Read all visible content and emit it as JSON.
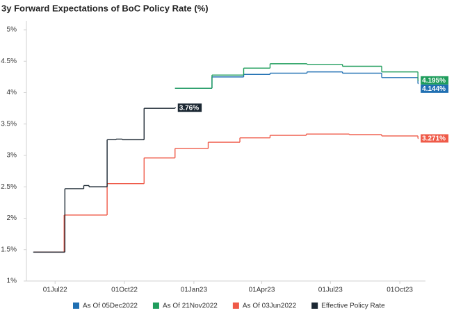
{
  "chart_data": {
    "type": "step-line",
    "title": "3y Forward Expectations of BoC Policy Rate (%)",
    "xlim": [
      "2022-05-24",
      "2023-11-04"
    ],
    "xticks": [
      {
        "value": "2022-07-01",
        "label": "01Jul22"
      },
      {
        "value": "2022-10-01",
        "label": "01Oct22"
      },
      {
        "value": "2023-01-01",
        "label": "01Jan23"
      },
      {
        "value": "2023-04-01",
        "label": "01Apr23"
      },
      {
        "value": "2023-07-01",
        "label": "01Jul23"
      },
      {
        "value": "2023-10-01",
        "label": "01Oct23"
      }
    ],
    "ylim": [
      1,
      5
    ],
    "yticks": [
      {
        "value": 1,
        "label": "1%"
      },
      {
        "value": 1.5,
        "label": "1.5%"
      },
      {
        "value": 2,
        "label": "2%"
      },
      {
        "value": 2.5,
        "label": "2.5%"
      },
      {
        "value": 3,
        "label": "3%"
      },
      {
        "value": 3.5,
        "label": "3.5%"
      },
      {
        "value": 4,
        "label": "4%"
      },
      {
        "value": 4.5,
        "label": "4.5%"
      },
      {
        "value": 5,
        "label": "5%"
      }
    ],
    "series": [
      {
        "name": "As Of 05Dec2022",
        "color": "#1f6fb2",
        "x": [
          "2022-12-07",
          "2023-01-25",
          "2023-03-08",
          "2023-04-12",
          "2023-05-31",
          "2023-07-17",
          "2023-09-07",
          "2023-10-25"
        ],
        "values": [
          4.07,
          4.25,
          4.29,
          4.31,
          4.33,
          4.31,
          4.24,
          4.144
        ],
        "value_labels": [
          null,
          null,
          null,
          null,
          null,
          null,
          null,
          "4.144%"
        ]
      },
      {
        "name": "As Of 21Nov2022",
        "color": "#1f9d5c",
        "x": [
          "2022-12-07",
          "2023-01-25",
          "2023-03-08",
          "2023-04-12",
          "2023-05-31",
          "2023-07-17",
          "2023-09-07",
          "2023-10-25"
        ],
        "values": [
          4.07,
          4.28,
          4.39,
          4.46,
          4.45,
          4.42,
          4.33,
          4.195
        ],
        "value_labels": [
          null,
          null,
          null,
          null,
          null,
          null,
          null,
          "4.195%"
        ]
      },
      {
        "name": "As Of 03Jun2022",
        "color": "#ef5a48",
        "x": [
          "2022-06-03",
          "2022-07-13",
          "2022-09-08",
          "2022-10-27",
          "2022-12-07",
          "2023-01-20",
          "2023-03-03",
          "2023-04-12",
          "2023-05-30",
          "2023-07-26",
          "2023-09-07",
          "2023-10-25"
        ],
        "values": [
          1.46,
          2.05,
          2.55,
          2.96,
          3.11,
          3.21,
          3.28,
          3.32,
          3.34,
          3.33,
          3.31,
          3.271
        ],
        "value_labels": [
          null,
          null,
          null,
          null,
          null,
          null,
          null,
          null,
          null,
          null,
          null,
          "3.271%"
        ]
      },
      {
        "name": "Effective Policy Rate",
        "color": "#1c2833",
        "x": [
          "2022-06-02",
          "2022-07-14",
          "2022-08-08",
          "2022-08-15",
          "2022-09-08",
          "2022-09-20",
          "2022-09-28",
          "2022-10-27",
          "2022-12-07"
        ],
        "values": [
          1.46,
          2.47,
          2.52,
          2.5,
          3.25,
          3.26,
          3.25,
          3.75,
          3.76
        ],
        "value_labels": [
          null,
          null,
          null,
          null,
          null,
          null,
          null,
          null,
          "3.76%"
        ]
      }
    ]
  }
}
